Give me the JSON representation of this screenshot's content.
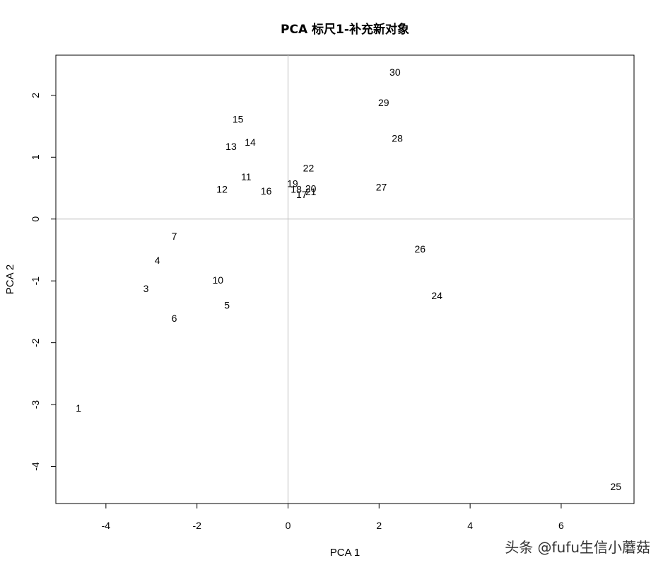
{
  "chart_data": {
    "type": "scatter",
    "title": "PCA 标尺1-补充新对象",
    "xlabel": "PCA 1",
    "ylabel": "PCA 2",
    "xlim": [
      -5.1,
      7.6
    ],
    "ylim": [
      -4.6,
      2.65
    ],
    "xticks": [
      -4,
      -2,
      0,
      2,
      4,
      6
    ],
    "yticks": [
      -4,
      -3,
      -2,
      -1,
      0,
      1,
      2
    ],
    "reference_lines": {
      "x": 0,
      "y": 0
    },
    "grid": false,
    "points": [
      {
        "label": "1",
        "x": -4.6,
        "y": -3.07
      },
      {
        "label": "3",
        "x": -3.12,
        "y": -1.14
      },
      {
        "label": "4",
        "x": -2.87,
        "y": -0.68
      },
      {
        "label": "5",
        "x": -1.34,
        "y": -1.41
      },
      {
        "label": "6",
        "x": -2.5,
        "y": -1.62
      },
      {
        "label": "7",
        "x": -2.5,
        "y": -0.29
      },
      {
        "label": "10",
        "x": -1.54,
        "y": -1.0
      },
      {
        "label": "11",
        "x": -0.92,
        "y": 0.67
      },
      {
        "label": "12",
        "x": -1.45,
        "y": 0.47
      },
      {
        "label": "13",
        "x": -1.25,
        "y": 1.16
      },
      {
        "label": "14",
        "x": -0.83,
        "y": 1.23
      },
      {
        "label": "15",
        "x": -1.1,
        "y": 1.6
      },
      {
        "label": "16",
        "x": -0.48,
        "y": 0.44
      },
      {
        "label": "17",
        "x": 0.3,
        "y": 0.38
      },
      {
        "label": "18",
        "x": 0.18,
        "y": 0.47
      },
      {
        "label": "19",
        "x": 0.1,
        "y": 0.56
      },
      {
        "label": "20",
        "x": 0.5,
        "y": 0.48
      },
      {
        "label": "21",
        "x": 0.5,
        "y": 0.43
      },
      {
        "label": "22",
        "x": 0.45,
        "y": 0.81
      },
      {
        "label": "24",
        "x": 3.27,
        "y": -1.25
      },
      {
        "label": "25",
        "x": 7.2,
        "y": -4.34
      },
      {
        "label": "26",
        "x": 2.9,
        "y": -0.5
      },
      {
        "label": "27",
        "x": 2.05,
        "y": 0.5
      },
      {
        "label": "28",
        "x": 2.4,
        "y": 1.29
      },
      {
        "label": "29",
        "x": 2.1,
        "y": 1.87
      },
      {
        "label": "30",
        "x": 2.35,
        "y": 2.36
      }
    ]
  },
  "watermark": "头条 @fufu生信小蘑菇"
}
